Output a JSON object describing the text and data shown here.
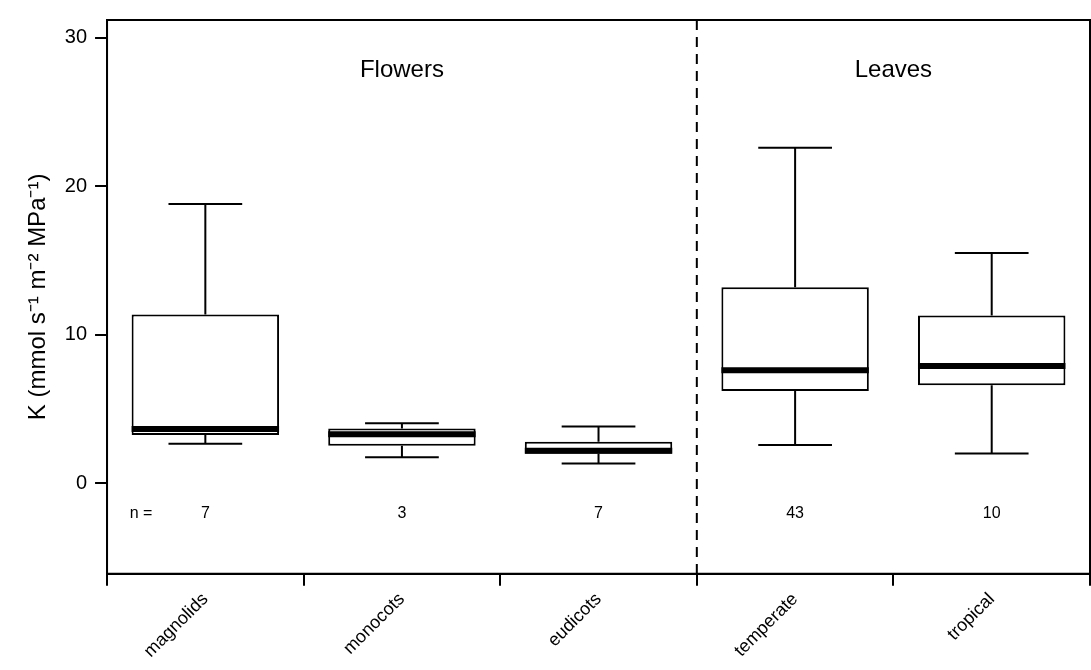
{
  "chart_data": {
    "type": "box",
    "ylabel": "K (mmol s⁻¹ m⁻² MPa⁻¹)",
    "categories": [
      "magnolids",
      "monocots",
      "eudicots",
      "temperate",
      "tropical"
    ],
    "boxes": [
      {
        "low": 2.65,
        "q1": 3.25,
        "median": 3.64,
        "q3": 11.36,
        "high": 18.8
      },
      {
        "low": 1.74,
        "q1": 2.52,
        "median": 3.3,
        "q3": 3.69,
        "high": 4.03
      },
      {
        "low": 1.33,
        "q1": 1.98,
        "median": 2.18,
        "q3": 2.79,
        "high": 3.81
      },
      {
        "low": 2.57,
        "q1": 6.2,
        "median": 7.6,
        "q3": 13.2,
        "high": 22.6
      },
      {
        "low": 2.0,
        "q1": 6.6,
        "median": 7.9,
        "q3": 11.3,
        "high": 15.5
      }
    ],
    "ylim": [
      -6.1,
      31.2
    ],
    "yticks": [
      0,
      10,
      20,
      30
    ],
    "grid": false,
    "legend": false,
    "annotations": [
      "Flowers",
      "Leaves",
      "n =",
      "7",
      "3",
      "7",
      "43",
      "10"
    ]
  }
}
